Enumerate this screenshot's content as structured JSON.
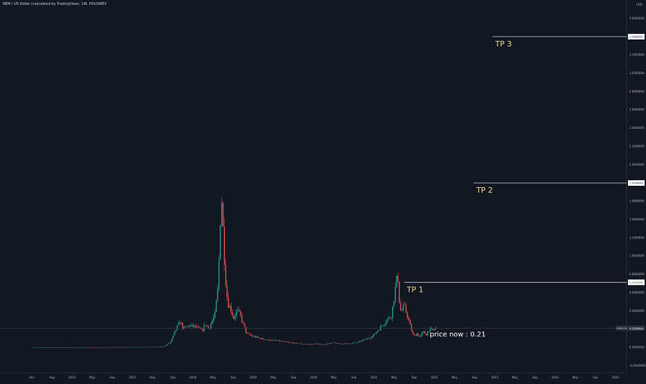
{
  "symbol": {
    "title": "NEM / US Dollar (calculated by TradingView), 1W, POLONIEX"
  },
  "chart_data": {
    "type": "candlestick",
    "xlabels": [
      "Apr",
      "Aug",
      "2016",
      "May",
      "Sep",
      "2017",
      "May",
      "Sep",
      "2018",
      "May",
      "Sep",
      "2019",
      "May",
      "Sep",
      "2020",
      "May",
      "Sep",
      "2021",
      "May",
      "Sep",
      "2022",
      "May",
      "Sep",
      "2023",
      "May",
      "Sep",
      "2024",
      "May",
      "Sep",
      "2025"
    ],
    "yticks": [
      -0.2,
      0.0,
      0.2,
      0.4,
      0.6,
      0.8,
      1.0,
      1.2,
      1.4,
      1.6,
      1.8,
      2.0,
      2.2,
      2.4,
      2.6,
      2.8,
      3.0,
      3.2,
      3.4,
      3.6
    ],
    "ytick_labels": [
      "-0.2000000",
      "0.0000000",
      "0.2000000",
      "0.4000000",
      "0.6000000",
      "0.8000000",
      "1.0000000",
      "1.2000000",
      "1.4000000",
      "1.6000000",
      "1.8000000",
      "2.0000000",
      "2.2000000",
      "2.4000000",
      "2.6000000",
      "2.8000000",
      "3.0000000",
      "3.2000000",
      "3.4000000",
      "3.6000000"
    ],
    "ylim": [
      -0.28,
      3.8
    ],
    "currency": "USD",
    "price_path": [
      [
        0.0,
        0.0
      ],
      [
        0.3,
        0.002
      ],
      [
        0.4,
        0.004
      ],
      [
        0.42,
        0.01
      ],
      [
        0.44,
        0.06
      ],
      [
        0.46,
        0.22
      ],
      [
        0.47,
        0.28
      ],
      [
        0.48,
        0.2
      ],
      [
        0.5,
        0.24
      ],
      [
        0.52,
        0.22
      ],
      [
        0.54,
        0.18
      ],
      [
        0.55,
        0.26
      ],
      [
        0.56,
        0.2
      ],
      [
        0.58,
        0.35
      ],
      [
        0.59,
        0.65
      ],
      [
        0.595,
        1.15
      ],
      [
        0.6,
        1.75
      ],
      [
        0.605,
        1.35
      ],
      [
        0.61,
        1.0
      ],
      [
        0.615,
        0.7
      ],
      [
        0.62,
        0.5
      ],
      [
        0.63,
        0.42
      ],
      [
        0.64,
        0.32
      ],
      [
        0.65,
        0.4
      ],
      [
        0.66,
        0.35
      ],
      [
        0.67,
        0.25
      ],
      [
        0.68,
        0.15
      ],
      [
        0.7,
        0.12
      ],
      [
        0.72,
        0.1
      ],
      [
        0.75,
        0.08
      ],
      [
        0.78,
        0.07
      ],
      [
        0.8,
        0.06
      ],
      [
        0.82,
        0.05
      ],
      [
        0.85,
        0.04
      ],
      [
        0.88,
        0.03
      ],
      [
        0.9,
        0.04
      ],
      [
        0.92,
        0.03
      ],
      [
        0.94,
        0.04
      ],
      [
        0.95,
        0.05
      ],
      [
        0.97,
        0.04
      ],
      [
        1.0,
        0.04
      ],
      [
        1.03,
        0.05
      ],
      [
        1.06,
        0.09
      ],
      [
        1.08,
        0.12
      ],
      [
        1.1,
        0.2
      ],
      [
        1.12,
        0.28
      ],
      [
        1.14,
        0.35
      ],
      [
        1.15,
        0.6
      ],
      [
        1.16,
        0.8
      ],
      [
        1.165,
        0.5
      ],
      [
        1.17,
        0.38
      ],
      [
        1.18,
        0.45
      ],
      [
        1.19,
        0.35
      ],
      [
        1.2,
        0.22
      ],
      [
        1.21,
        0.12
      ],
      [
        1.22,
        0.15
      ],
      [
        1.23,
        0.11
      ],
      [
        1.24,
        0.17
      ],
      [
        1.25,
        0.14
      ],
      [
        1.26,
        0.2
      ],
      [
        1.27,
        0.18
      ],
      [
        1.28,
        0.21
      ]
    ],
    "current_price": {
      "label": "XEMUSD",
      "value_label": "0.2100000",
      "sub_label": "",
      "value": 0.21
    },
    "targets": [
      {
        "label": "TP 1",
        "value": 0.7112,
        "value_label": "0.7112000"
      },
      {
        "label": "TP 2",
        "value": 1.7979,
        "value_label": "1.7979000"
      },
      {
        "label": "TP 3",
        "value": 3.3988,
        "value_label": "3.3988000"
      }
    ],
    "annotations": [
      {
        "text": "price now : 0.21"
      }
    ],
    "colors": {
      "up": "#26a69a",
      "down": "#ef5350",
      "background": "#131722",
      "target_line": "#d1d4dc",
      "target_label": "#f0d98c",
      "price_line": "#363a45",
      "price_badge": "#2a2e39"
    }
  }
}
